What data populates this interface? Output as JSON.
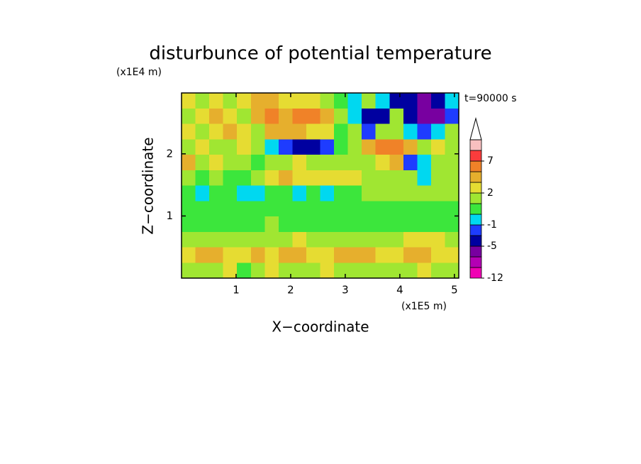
{
  "chart_data": {
    "type": "contour",
    "title": "disturbunce of potential temperature",
    "y_unit_label": "(x1E4 m)",
    "x_unit_label": "(x1E5 m)",
    "time_label": "t=90000 s",
    "x_label": "X−coordinate",
    "y_label": "Z−coordinate",
    "xlim": [
      0,
      5.08
    ],
    "ylim": [
      0,
      2.98
    ],
    "xticks": [
      1,
      2,
      3,
      4,
      5
    ],
    "yticks": [
      1,
      2
    ],
    "levels": [
      -12,
      -9,
      -7,
      -5,
      -3,
      -1,
      0,
      1,
      2,
      3,
      5,
      7,
      9
    ],
    "colors": [
      "#f000b4",
      "#b400b4",
      "#7800a0",
      "#0000a0",
      "#1e3cff",
      "#00d8f0",
      "#3ce63c",
      "#a0e632",
      "#e6dc32",
      "#e6af2d",
      "#f08228",
      "#fa3c3c",
      "#f8c0c0"
    ],
    "colorbar_ticks": [
      -12,
      -5,
      -1,
      2,
      7
    ],
    "z": [
      [
        2.5,
        1.5,
        2.5,
        1.5,
        2.5,
        4,
        4,
        2.5,
        2.5,
        2.5,
        1.5,
        0.5,
        -0.5,
        1.5,
        -0.5,
        -4,
        -4,
        -6,
        -4,
        -0.5
      ],
      [
        1.5,
        2.5,
        4,
        2.5,
        1.5,
        4,
        6,
        4,
        6,
        6,
        4,
        1.5,
        -0.5,
        -4,
        -4,
        1.5,
        -4,
        -6,
        -6,
        -2
      ],
      [
        2.5,
        1.5,
        2.5,
        4,
        2.5,
        1.5,
        4,
        4,
        4,
        2.5,
        2.5,
        0.5,
        1.5,
        -2,
        1.5,
        1.5,
        -0.5,
        -2,
        -0.5,
        1.5
      ],
      [
        1.5,
        2.5,
        1.5,
        1.5,
        2.5,
        1.5,
        -0.5,
        -2,
        -4,
        -4,
        -2,
        0.5,
        1.5,
        4,
        6,
        6,
        4,
        1.5,
        2.5,
        1.5
      ],
      [
        4,
        1.5,
        2.5,
        1.5,
        1.5,
        0.5,
        1.5,
        1.5,
        2.5,
        1.5,
        1.5,
        1.5,
        1.5,
        1.5,
        2.5,
        4,
        -2,
        -0.5,
        1.5,
        1.5
      ],
      [
        1.5,
        0.5,
        1.5,
        0.5,
        0.5,
        1.5,
        2.5,
        4,
        2.5,
        2.5,
        2.5,
        2.5,
        2.5,
        1.5,
        1.5,
        1.5,
        1.5,
        -0.5,
        1.5,
        1.5
      ],
      [
        0.5,
        -0.5,
        0.5,
        0.5,
        -0.5,
        -0.5,
        0.5,
        0.5,
        -0.5,
        0.5,
        -0.5,
        0.5,
        0.5,
        1.5,
        1.5,
        1.5,
        1.5,
        1.5,
        1.5,
        1.5
      ],
      [
        0.5,
        0.5,
        0.5,
        0.5,
        0.5,
        0.5,
        0.5,
        0.5,
        0.5,
        0.5,
        0.5,
        0.5,
        0.5,
        0.5,
        0.5,
        0.5,
        0.5,
        0.5,
        0.5,
        0.5
      ],
      [
        0.5,
        0.5,
        0.5,
        0.5,
        0.5,
        0.5,
        1.5,
        0.5,
        0.5,
        0.5,
        0.5,
        0.5,
        0.5,
        0.5,
        0.5,
        0.5,
        0.5,
        0.5,
        0.5,
        0.5
      ],
      [
        1.5,
        1.5,
        1.5,
        1.5,
        1.5,
        1.5,
        1.5,
        1.5,
        2.5,
        1.5,
        1.5,
        1.5,
        1.5,
        1.5,
        1.5,
        1.5,
        2.5,
        2.5,
        2.5,
        1.5
      ],
      [
        2.5,
        4,
        4,
        2.5,
        2.5,
        4,
        2.5,
        4,
        4,
        2.5,
        2.5,
        4,
        4,
        4,
        2.5,
        2.5,
        4,
        4,
        2.5,
        2.5
      ],
      [
        1.5,
        1.5,
        1.5,
        2.5,
        0.5,
        1.5,
        2.5,
        1.5,
        1.5,
        1.5,
        2.5,
        1.5,
        1.5,
        1.5,
        1.5,
        1.5,
        1.5,
        2.5,
        1.5,
        1.5
      ]
    ]
  }
}
